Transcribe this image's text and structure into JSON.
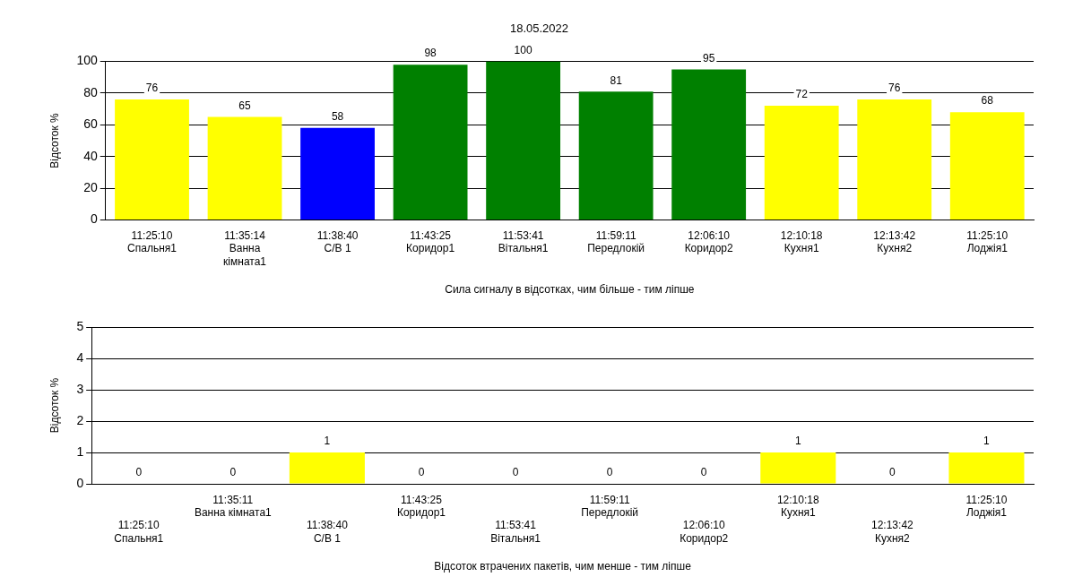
{
  "chart_data": [
    {
      "type": "bar",
      "title": "18.05.2022",
      "xlabel": "Сила сигналу в відсотках, чим більше - тим ліпше",
      "ylabel": "Відсоток %",
      "categories": [
        "11:25:10\nСпальня1",
        "11:35:14\nВанна\nкімната1",
        "11:38:40\nС/В 1",
        "11:43:25\nКоридор1",
        "11:53:41\nВітальня1",
        "11:59:11\nПередлокій",
        "12:06:10\nКоридор2",
        "12:10:18\nКухня1",
        "12:13:42\nКухня2",
        "11:25:10\nЛоджія1"
      ],
      "values": [
        76,
        65,
        58,
        98,
        100,
        81,
        95,
        72,
        76,
        68
      ],
      "colors": [
        "#ffff00",
        "#ffff00",
        "#0000ff",
        "#008000",
        "#008000",
        "#008000",
        "#008000",
        "#ffff00",
        "#ffff00",
        "#ffff00"
      ],
      "ylim": [
        0,
        100
      ],
      "yticks": [
        0,
        20,
        40,
        60,
        80,
        100
      ],
      "grid": "y",
      "data_labels": true,
      "legend": false
    },
    {
      "type": "bar",
      "xlabel": "Відсоток втрачених пакетів, чим менше - тим ліпше",
      "ylabel": "Відсоток %",
      "categories": [
        "11:25:10\nСпальня1",
        "11:35:11\nВанна кімната1",
        "11:38:40\nС/В 1",
        "11:43:25\nКоридор1",
        "11:53:41\nВітальня1",
        "11:59:11\nПередлокій",
        "12:06:10\nКоридор2",
        "12:10:18\nКухня1",
        "12:13:42\nКухня2",
        "11:25:10\nЛоджія1"
      ],
      "values": [
        0,
        0,
        1,
        0,
        0,
        0,
        0,
        1,
        0,
        1
      ],
      "colors": [
        "#ffff00",
        "#ffff00",
        "#ffff00",
        "#ffff00",
        "#ffff00",
        "#ffff00",
        "#ffff00",
        "#ffff00",
        "#ffff00",
        "#ffff00"
      ],
      "ylim": [
        0,
        5
      ],
      "yticks": [
        0,
        1,
        2,
        3,
        4,
        5
      ],
      "grid": "y",
      "data_labels": true,
      "legend": false
    }
  ]
}
